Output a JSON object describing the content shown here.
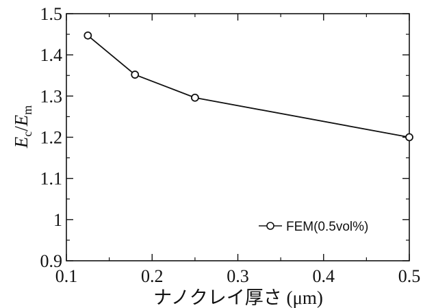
{
  "chart_data": {
    "type": "line",
    "title": "",
    "xlabel": "ナノクレイ厚さ (μm)",
    "ylabel": {
      "main": "E",
      "sub1": "c",
      "slash": "/",
      "main2": "E",
      "sub2": "m"
    },
    "xlim": [
      0.1,
      0.5
    ],
    "ylim": [
      0.9,
      1.5
    ],
    "x_ticks": [
      "0.1",
      "0.2",
      "0.3",
      "0.4",
      "0.5"
    ],
    "y_ticks": [
      "0.9",
      "1",
      "1.1",
      "1.2",
      "1.3",
      "1.4",
      "1.5"
    ],
    "grid": false,
    "legend_position": "bottom-right",
    "series": [
      {
        "name": "FEM(0.5vol%)",
        "marker": "open-circle",
        "color": "#111111",
        "x": [
          0.125,
          0.18,
          0.25,
          0.5
        ],
        "y": [
          1.447,
          1.352,
          1.296,
          1.2
        ]
      }
    ]
  }
}
